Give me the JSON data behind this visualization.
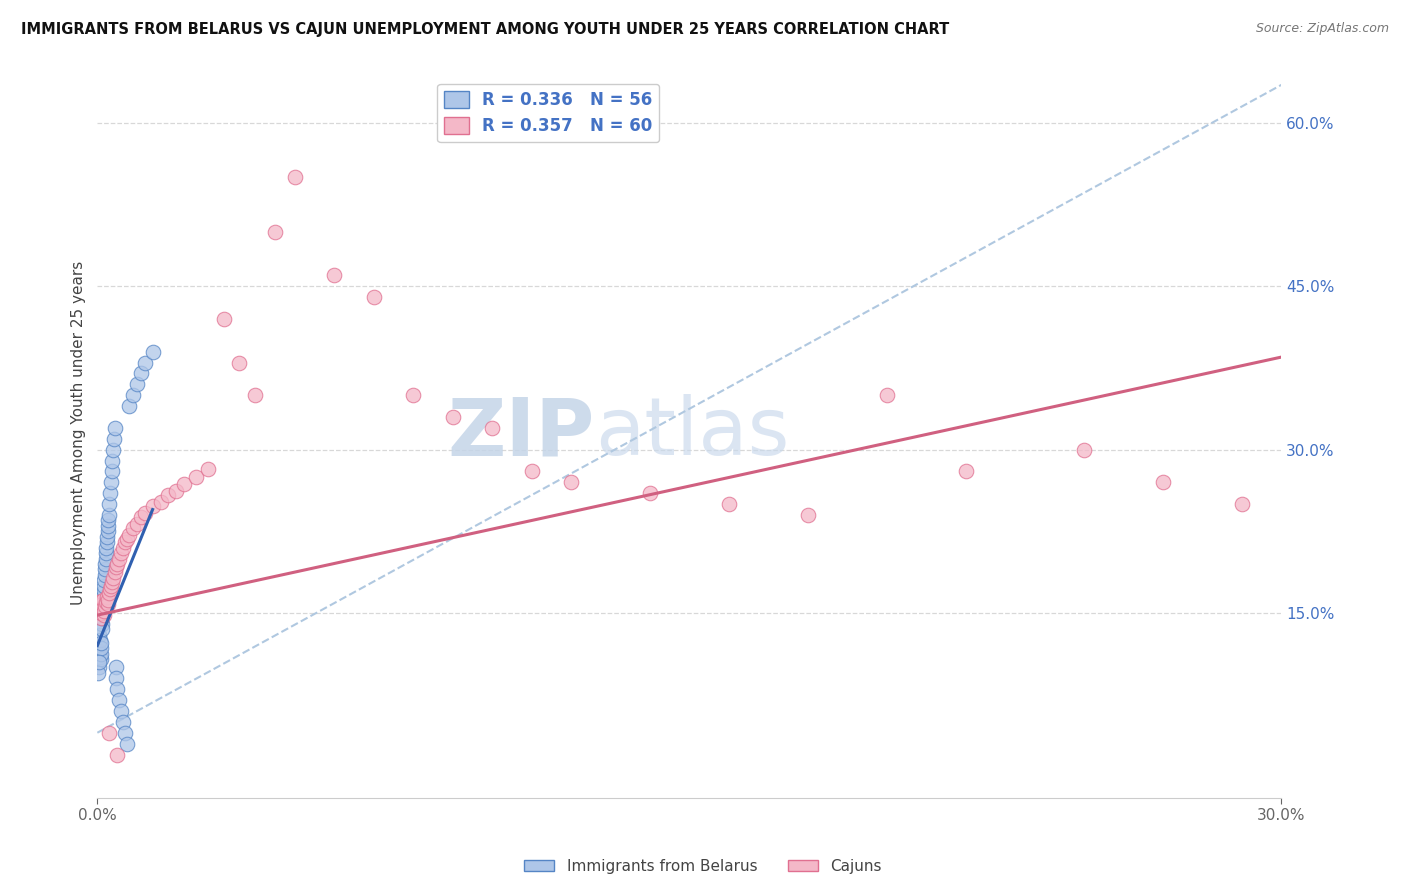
{
  "title": "IMMIGRANTS FROM BELARUS VS CAJUN UNEMPLOYMENT AMONG YOUTH UNDER 25 YEARS CORRELATION CHART",
  "source": "Source: ZipAtlas.com",
  "ylabel": "Unemployment Among Youth under 25 years",
  "xmin": 0.0,
  "xmax": 0.3,
  "ymin": -0.02,
  "ymax": 0.65,
  "right_yticks": [
    0.15,
    0.3,
    0.45,
    0.6
  ],
  "right_ytick_labels": [
    "15.0%",
    "30.0%",
    "45.0%",
    "60.0%"
  ],
  "legend_r1": "R = 0.336",
  "legend_n1": "N = 56",
  "legend_r2": "R = 0.357",
  "legend_n2": "N = 60",
  "series1_label": "Immigrants from Belarus",
  "series2_label": "Cajuns",
  "color1_fill": "#aec6e8",
  "color2_fill": "#f4b8c8",
  "color1_edge": "#5585c5",
  "color2_edge": "#e07090",
  "color1_line": "#3060b0",
  "color2_line": "#d06080",
  "color_dash": "#b0c8e0",
  "watermark_zip": "ZIP",
  "watermark_atlas": "atlas",
  "background_color": "#ffffff",
  "grid_color": "#d8d8d8",
  "scatter1_x": [
    0.0002,
    0.0003,
    0.0004,
    0.0005,
    0.0006,
    0.0007,
    0.0008,
    0.0009,
    0.001,
    0.001,
    0.0011,
    0.0012,
    0.0012,
    0.0013,
    0.0014,
    0.0015,
    0.0015,
    0.0016,
    0.0017,
    0.0018,
    0.0019,
    0.002,
    0.002,
    0.0021,
    0.0022,
    0.0023,
    0.0024,
    0.0025,
    0.0026,
    0.0027,
    0.0028,
    0.0029,
    0.003,
    0.0032,
    0.0034,
    0.0036,
    0.0038,
    0.004,
    0.0042,
    0.0044,
    0.0046,
    0.0048,
    0.005,
    0.0055,
    0.006,
    0.0065,
    0.007,
    0.0075,
    0.008,
    0.009,
    0.01,
    0.011,
    0.012,
    0.014,
    0.0001,
    0.0003
  ],
  "scatter1_y": [
    0.12,
    0.1,
    0.13,
    0.115,
    0.125,
    0.11,
    0.108,
    0.112,
    0.118,
    0.122,
    0.14,
    0.135,
    0.145,
    0.15,
    0.16,
    0.155,
    0.165,
    0.17,
    0.175,
    0.18,
    0.185,
    0.19,
    0.195,
    0.2,
    0.205,
    0.21,
    0.215,
    0.22,
    0.225,
    0.23,
    0.235,
    0.24,
    0.25,
    0.26,
    0.27,
    0.28,
    0.29,
    0.3,
    0.31,
    0.32,
    0.1,
    0.09,
    0.08,
    0.07,
    0.06,
    0.05,
    0.04,
    0.03,
    0.34,
    0.35,
    0.36,
    0.37,
    0.38,
    0.39,
    0.095,
    0.105
  ],
  "scatter2_x": [
    0.0004,
    0.0006,
    0.0008,
    0.001,
    0.0012,
    0.0014,
    0.0016,
    0.0018,
    0.002,
    0.0022,
    0.0024,
    0.0026,
    0.0028,
    0.003,
    0.0032,
    0.0034,
    0.0036,
    0.004,
    0.0044,
    0.0048,
    0.005,
    0.0055,
    0.006,
    0.0065,
    0.007,
    0.0075,
    0.008,
    0.009,
    0.01,
    0.011,
    0.012,
    0.014,
    0.016,
    0.018,
    0.02,
    0.022,
    0.025,
    0.028,
    0.032,
    0.036,
    0.04,
    0.045,
    0.05,
    0.06,
    0.07,
    0.08,
    0.09,
    0.1,
    0.11,
    0.12,
    0.14,
    0.16,
    0.18,
    0.2,
    0.22,
    0.25,
    0.27,
    0.29,
    0.003,
    0.005
  ],
  "scatter2_y": [
    0.16,
    0.155,
    0.145,
    0.15,
    0.158,
    0.162,
    0.148,
    0.152,
    0.156,
    0.16,
    0.165,
    0.158,
    0.162,
    0.168,
    0.172,
    0.175,
    0.178,
    0.182,
    0.188,
    0.192,
    0.195,
    0.2,
    0.205,
    0.21,
    0.215,
    0.218,
    0.222,
    0.228,
    0.232,
    0.238,
    0.242,
    0.248,
    0.252,
    0.258,
    0.262,
    0.268,
    0.275,
    0.282,
    0.42,
    0.38,
    0.35,
    0.5,
    0.55,
    0.46,
    0.44,
    0.35,
    0.33,
    0.32,
    0.28,
    0.27,
    0.26,
    0.25,
    0.24,
    0.35,
    0.28,
    0.3,
    0.27,
    0.25,
    0.04,
    0.02
  ],
  "regline2_x0": 0.0,
  "regline2_y0": 0.148,
  "regline2_x1": 0.3,
  "regline2_y1": 0.385,
  "regline1_x0": 0.0,
  "regline1_y0": 0.12,
  "regline1_x1": 0.014,
  "regline1_y1": 0.245,
  "dashline_x0": 0.0,
  "dashline_y0": 0.04,
  "dashline_x1": 0.3,
  "dashline_y1": 0.635
}
